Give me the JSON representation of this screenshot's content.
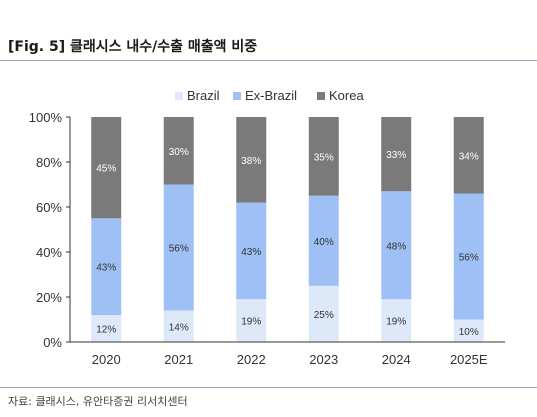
{
  "header": {
    "title": "[Fig. 5] 클래시스 내수/수출 매출액 비중"
  },
  "footer": {
    "source": "자료: 클래시스, 유안타증권 리서치센터"
  },
  "colors": {
    "Brazil": "#dde8f8",
    "Ex-Brazil": "#9ec0f5",
    "Korea": "#7a7a7a",
    "axis": "#333333"
  },
  "chart_data": {
    "type": "bar",
    "stacked": true,
    "percent": true,
    "categories": [
      "2020",
      "2021",
      "2022",
      "2023",
      "2024",
      "2025E"
    ],
    "series": [
      {
        "name": "Brazil",
        "values": [
          12,
          14,
          19,
          25,
          19,
          10
        ],
        "labels": [
          "12%",
          "14%",
          "19%",
          "25%",
          "19%",
          "10%"
        ]
      },
      {
        "name": "Ex-Brazil",
        "values": [
          43,
          56,
          43,
          40,
          48,
          56
        ],
        "labels": [
          "43%",
          "56%",
          "43%",
          "40%",
          "48%",
          "56%"
        ]
      },
      {
        "name": "Korea",
        "values": [
          45,
          30,
          38,
          35,
          33,
          34
        ],
        "labels": [
          "45%",
          "30%",
          "38%",
          "35%",
          "33%",
          "34%"
        ]
      }
    ],
    "ylim": [
      0,
      100
    ],
    "yticks": [
      0,
      20,
      40,
      60,
      80,
      100
    ],
    "ytick_labels": [
      "0%",
      "20%",
      "40%",
      "60%",
      "80%",
      "100%"
    ],
    "legend_position": "top-center",
    "grid": false
  }
}
